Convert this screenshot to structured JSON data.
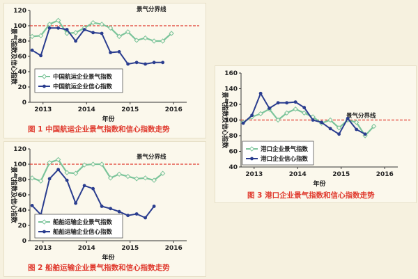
{
  "colors": {
    "business_series": "#7bc49a",
    "confidence_series": "#2a3d8f",
    "threshold_line": "#e03a2e",
    "caption": "#e03a2e"
  },
  "chart_data": [
    {
      "id": "fig1",
      "type": "line",
      "caption": "图 1   中国航运企业景气指数和信心指数走势",
      "xlabel": "年份",
      "ylabel": "景气指数及信心指数",
      "xlim": [
        2012.7,
        2016.3
      ],
      "ylim": [
        0,
        120
      ],
      "xticks": [
        2013,
        2014,
        2015,
        2016
      ],
      "yticks": [
        0,
        20,
        40,
        60,
        80,
        100,
        120
      ],
      "reference": {
        "y": 100,
        "label": "景气分界线"
      },
      "legend": "bottom-left",
      "grid": false,
      "x": [
        2012.75,
        2012.95,
        2013.15,
        2013.35,
        2013.55,
        2013.75,
        2013.95,
        2014.15,
        2014.35,
        2014.55,
        2014.75,
        2014.95,
        2015.15,
        2015.35,
        2015.55,
        2015.75,
        2015.95
      ],
      "series": [
        {
          "name": "中国航运企业景气指数",
          "role": "business",
          "values": [
            86,
            87,
            102,
            107,
            90,
            91,
            97,
            104,
            102,
            97,
            86,
            92,
            81,
            84,
            80,
            80,
            90
          ]
        },
        {
          "name": "中国航运企业信心指数",
          "role": "confidence",
          "values": [
            68,
            61,
            97,
            97,
            95,
            80,
            95,
            91,
            90,
            65,
            66,
            50,
            52,
            50,
            52,
            52,
            null
          ]
        }
      ]
    },
    {
      "id": "fig2",
      "type": "line",
      "caption": "图 2   船舶运输企业景气指数和信心指数走势",
      "xlabel": "年份",
      "ylabel": "景气指数及信心指数",
      "xlim": [
        2012.7,
        2016.3
      ],
      "ylim": [
        0,
        120
      ],
      "xticks": [
        2013,
        2014,
        2015,
        2016
      ],
      "yticks": [
        0,
        20,
        40,
        60,
        80,
        100,
        120
      ],
      "reference": {
        "y": 100,
        "label": "景气分界线"
      },
      "legend": "bottom-left",
      "grid": false,
      "x": [
        2012.75,
        2012.95,
        2013.15,
        2013.35,
        2013.55,
        2013.75,
        2013.95,
        2014.15,
        2014.35,
        2014.55,
        2014.75,
        2014.95,
        2015.15,
        2015.35,
        2015.55,
        2015.75,
        2015.95
      ],
      "series": [
        {
          "name": "船舶运输企业景气指数",
          "role": "business",
          "values": [
            82,
            78,
            102,
            106,
            89,
            88,
            99,
            100,
            100,
            82,
            87,
            84,
            81,
            82,
            79,
            88,
            null
          ]
        },
        {
          "name": "船舶运输企业信心指数",
          "role": "confidence",
          "values": [
            46,
            34,
            81,
            93,
            79,
            49,
            72,
            68,
            45,
            42,
            38,
            33,
            35,
            30,
            45,
            null,
            null
          ]
        }
      ]
    },
    {
      "id": "fig3",
      "type": "line",
      "caption": "图 3   港口企业景气指数和信心指数走势",
      "xlabel": "年份",
      "ylabel": "景气指数及信心指数",
      "xlim": [
        2012.7,
        2016.3
      ],
      "ylim": [
        40,
        160
      ],
      "xticks": [
        2013,
        2014,
        2015,
        2016
      ],
      "yticks": [
        40,
        60,
        80,
        100,
        120,
        140,
        160
      ],
      "reference": {
        "y": 100,
        "label": "景气分界线"
      },
      "legend": "bottom-left",
      "grid": false,
      "x": [
        2012.75,
        2012.95,
        2013.15,
        2013.35,
        2013.55,
        2013.75,
        2013.95,
        2014.15,
        2014.35,
        2014.55,
        2014.75,
        2014.95,
        2015.15,
        2015.35,
        2015.55,
        2015.75
      ],
      "series": [
        {
          "name": "港口企业景气指数",
          "role": "business",
          "values": [
            97,
            104,
            108,
            114,
            100,
            109,
            114,
            109,
            104,
            96,
            100,
            90,
            100,
            97,
            80,
            92
          ]
        },
        {
          "name": "港口企业信心指数",
          "role": "confidence",
          "values": [
            96,
            106,
            134,
            115,
            122,
            122,
            123,
            116,
            100,
            97,
            89,
            82,
            102,
            88,
            82,
            null
          ]
        }
      ]
    }
  ]
}
